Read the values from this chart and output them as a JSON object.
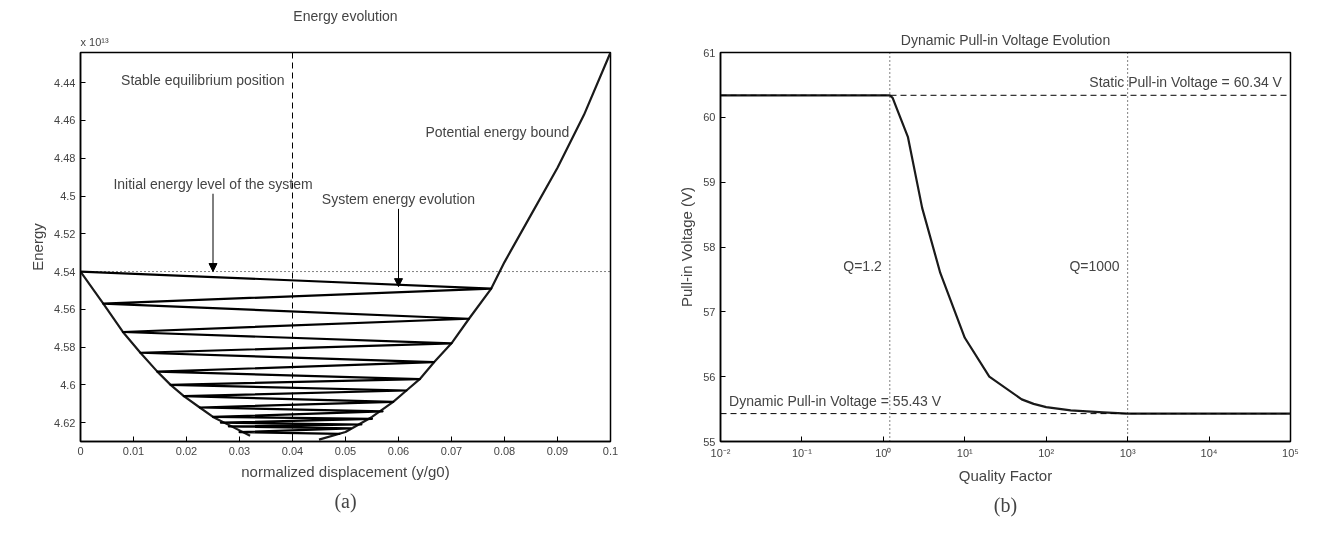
{
  "chart_data": [
    {
      "type": "line",
      "title": "Energy evolution",
      "xlabel": "normalized displacement (y/g0)",
      "ylabel": "Energy",
      "xlim": [
        0,
        0.1
      ],
      "xticks": [
        0,
        0.01,
        0.02,
        0.03,
        0.04,
        0.05,
        0.06,
        0.07,
        0.08,
        0.09,
        0.1
      ],
      "ylim": [
        4.63,
        4.424
      ],
      "yticks": [
        4.44,
        4.46,
        4.48,
        4.5,
        4.52,
        4.54,
        4.56,
        4.58,
        4.6,
        4.62
      ],
      "grid": false,
      "line_style": "solid",
      "marker": "none",
      "series": [
        {
          "color": "#1a1a1a",
          "x": [
            0,
            0.0043,
            0.008,
            0.0113,
            0.0145,
            0.017,
            0.0195,
            0.0225,
            0.025,
            0.0285,
            0.032,
            0.035,
            0.04,
            0.045,
            0.05,
            0.055,
            0.059,
            0.0615,
            0.064,
            0.0667,
            0.07,
            0.0733,
            0.0775,
            0.08,
            0.085,
            0.09,
            0.095,
            0.1
          ],
          "values": [
            4.54,
            4.557,
            4.572,
            4.583,
            4.593,
            4.6,
            4.606,
            4.612,
            4.617,
            4.622,
            4.627,
            null,
            null,
            4.629,
            4.625,
            4.617,
            4.609,
            4.603,
            4.597,
            4.588,
            4.578,
            4.565,
            4.549,
            4.535,
            4.51,
            4.485,
            4.457,
            4.424
          ]
        },
        {
          "color": "#000000",
          "x": [
            0,
            0.0775,
            0.0043,
            0.0733,
            0.008,
            0.07,
            0.0113,
            0.0667,
            0.0145,
            0.064,
            0.017,
            0.0615,
            0.0195,
            0.059,
            0.0225,
            0.057,
            0.025,
            0.055,
            0.0265,
            0.053,
            0.028,
            0.051,
            0.03,
            0.049
          ],
          "values": [
            4.54,
            4.549,
            4.557,
            4.565,
            4.572,
            4.578,
            4.583,
            4.588,
            4.593,
            4.597,
            4.6,
            4.603,
            4.606,
            4.609,
            4.612,
            4.614,
            4.617,
            4.618,
            4.62,
            4.621,
            4.622,
            4.623,
            4.625,
            4.626
          ]
        }
      ],
      "ref_lines": [
        {
          "axis": "x",
          "value": 0.04,
          "label": "Stable equilibrium position",
          "line_style": "dashed",
          "color": "#000000"
        },
        {
          "axis": "y",
          "value": 4.54,
          "label": null,
          "line_style": "dotted",
          "color": "#000000"
        }
      ],
      "annotations": [
        "x 10¹³",
        {
          "text": "Initial energy level of the system",
          "x": 0.025,
          "y": 4.54
        },
        {
          "text": "System energy evolution",
          "x": 0.06,
          "y": 4.548
        },
        {
          "text": "Potential energy bound",
          "x": 0.093,
          "y": 4.466
        },
        "(a)"
      ]
    },
    {
      "type": "line",
      "title": "Dynamic Pull-in Voltage Evolution",
      "xlabel": "Quality Factor",
      "ylabel": "Pull-in Voltage (V)",
      "log": "x",
      "xlim": [
        0.01,
        100000
      ],
      "xticks": [
        {
          "value": 0.01,
          "label": "10⁻²"
        },
        {
          "value": 0.1,
          "label": "10⁻¹"
        },
        {
          "value": 1,
          "label": "10⁰"
        },
        {
          "value": 10,
          "label": "10¹"
        },
        {
          "value": 100,
          "label": "10²"
        },
        {
          "value": 1000,
          "label": "10³"
        },
        {
          "value": 10000,
          "label": "10⁴"
        },
        {
          "value": 100000,
          "label": "10⁵"
        }
      ],
      "ylim": [
        55,
        61
      ],
      "yticks": [
        55,
        56,
        57,
        58,
        59,
        60,
        61
      ],
      "grid": false,
      "line_style": "solid",
      "marker": "none",
      "series": [
        {
          "color": "#1a1a1a",
          "x": [
            0.01,
            1.2,
            1.3,
            1.5,
            2,
            3,
            5,
            10,
            20,
            50,
            70,
            100,
            200,
            500,
            1000,
            100000
          ],
          "values": [
            60.34,
            60.34,
            60.3,
            60.1,
            59.7,
            58.6,
            57.6,
            56.6,
            56.0,
            55.65,
            55.58,
            55.53,
            55.48,
            55.45,
            55.43,
            55.43
          ]
        }
      ],
      "ref_lines": [
        {
          "axis": "y",
          "value": 60.34,
          "label": "Static Pull-in Voltage = 60.34 V",
          "line_style": "dashed",
          "color": "#000000"
        },
        {
          "axis": "y",
          "value": 55.43,
          "label": "Dynamic Pull-in Voltage = 55.43 V",
          "line_style": "dashed",
          "color": "#000000"
        },
        {
          "axis": "x",
          "value": 1.2,
          "label": "Q=1.2",
          "line_style": "dotted",
          "color": "#000000"
        },
        {
          "axis": "x",
          "value": 1000,
          "label": "Q=1000",
          "line_style": "dotted",
          "color": "#000000"
        }
      ],
      "annotations": [
        "(b)"
      ]
    }
  ]
}
